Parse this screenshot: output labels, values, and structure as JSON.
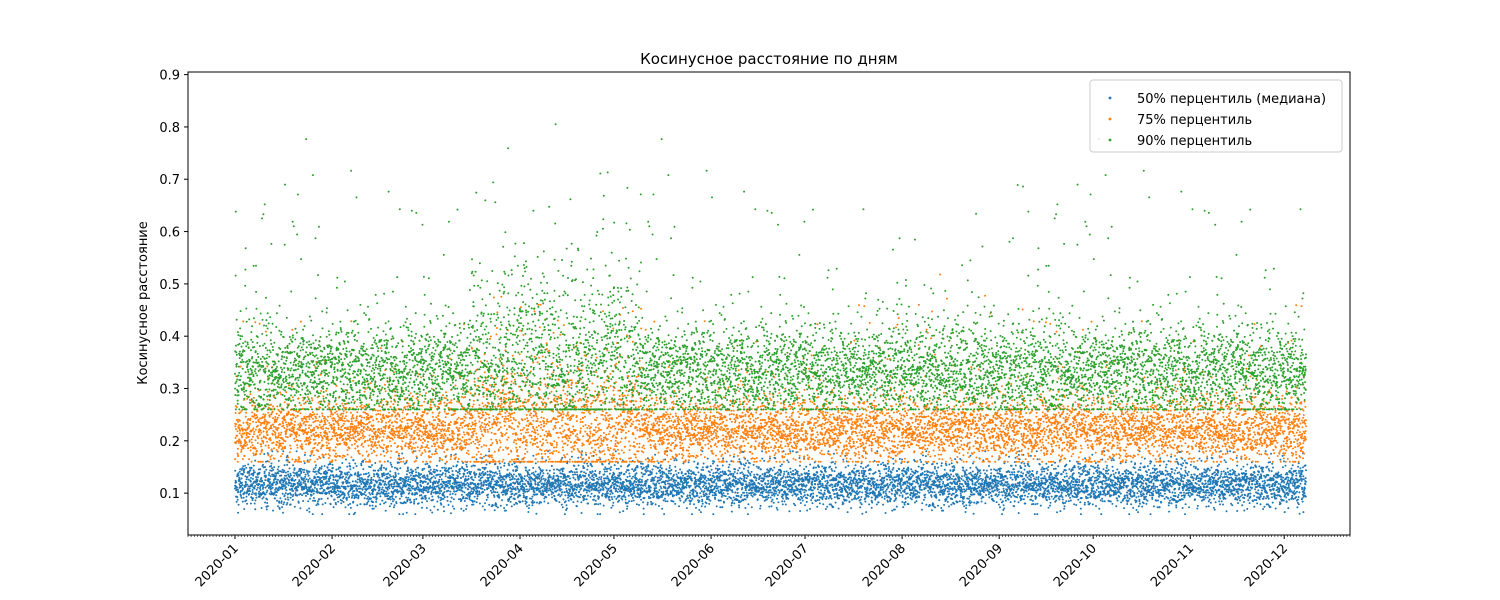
{
  "chart_data": {
    "type": "scatter",
    "title": "Косинусное расстояние по дням",
    "xlabel": "",
    "ylabel": "Косинусное расстояние",
    "x_axis_type": "date",
    "xlim": [
      "2019-12-17",
      "2020-12-22"
    ],
    "ylim": [
      0.02,
      0.905
    ],
    "y_ticks": [
      0.1,
      0.2,
      0.3,
      0.4,
      0.5,
      0.6,
      0.7,
      0.8,
      0.9
    ],
    "y_tick_labels": [
      "0.1",
      "0.2",
      "0.3",
      "0.4",
      "0.5",
      "0.6",
      "0.7",
      "0.8",
      "0.9"
    ],
    "x_ticks": [
      "2020-01-01",
      "2020-02-01",
      "2020-03-01",
      "2020-04-01",
      "2020-05-01",
      "2020-06-01",
      "2020-07-01",
      "2020-08-01",
      "2020-09-01",
      "2020-10-01",
      "2020-11-01",
      "2020-12-01"
    ],
    "x_tick_labels": [
      "2020-01",
      "2020-02",
      "2020-03",
      "2020-04",
      "2020-05",
      "2020-06",
      "2020-07",
      "2020-08",
      "2020-09",
      "2020-10",
      "2020-11",
      "2020-12"
    ],
    "x_minor_ticks": "daily",
    "data_range": [
      "2020-01-01",
      "2020-12-07"
    ],
    "grid": false,
    "legend_position": "top-right",
    "marker_size": 1,
    "series": [
      {
        "name": "50% перцентиль (медиана)",
        "color": "#1f77b4",
        "typical_band": [
          0.08,
          0.16
        ],
        "center": 0.115,
        "min": 0.06,
        "max": 0.18
      },
      {
        "name": "75% перцентиль",
        "color": "#ff7f0e",
        "typical_band": [
          0.17,
          0.29
        ],
        "center": 0.22,
        "min": 0.16,
        "max": 0.67
      },
      {
        "name": "90% перцентиль",
        "color": "#2ca02c",
        "typical_band": [
          0.27,
          0.45
        ],
        "center": 0.33,
        "min": 0.26,
        "max": 0.86
      }
    ]
  }
}
